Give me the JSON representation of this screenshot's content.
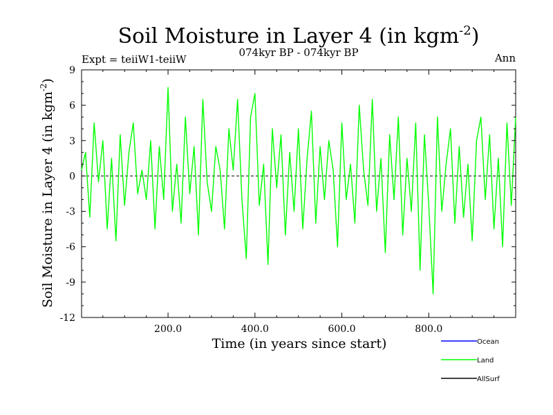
{
  "header": {
    "title": "Soil Moisture in Layer 4 (in kgm",
    "title_sup": "-2",
    "title_close": ")",
    "expt": "Expt = teiiW1-teiiW",
    "period": "074kyr BP - 074kyr BP",
    "season": "Ann"
  },
  "chart_data": {
    "type": "line",
    "title": "Soil Moisture in Layer 4 (in kgm-2)",
    "xlabel": "Time (in years since start)",
    "ylabel": "Soil Moisture in Layer 4 (in kgm-2)",
    "ylabel_main": "Soil Moisture in Layer 4 (in kgm",
    "ylabel_sup": "-2",
    "ylabel_close": ")",
    "xlim": [
      1,
      1000
    ],
    "ylim": [
      -12,
      9
    ],
    "xticks": [
      200,
      400,
      600,
      800
    ],
    "xtick_labels": [
      "200.0",
      "400.0",
      "600.0",
      "800.0"
    ],
    "yticks": [
      -12,
      -9,
      -6,
      -3,
      0,
      3,
      6,
      9
    ],
    "ytick_labels": [
      "-12",
      "-9",
      "-6",
      "-3",
      "0",
      "3",
      "6",
      "9"
    ],
    "zero_line": true,
    "grid": false,
    "legend_position": "bottom-right",
    "series": [
      {
        "name": "Ocean",
        "color": "#0000ff",
        "x": [],
        "y": []
      },
      {
        "name": "Land",
        "color": "#00ff00",
        "x": [
          1,
          10,
          20,
          30,
          40,
          50,
          60,
          70,
          80,
          90,
          100,
          110,
          120,
          130,
          140,
          150,
          160,
          170,
          180,
          190,
          200,
          210,
          220,
          230,
          240,
          250,
          260,
          270,
          280,
          290,
          300,
          310,
          320,
          330,
          340,
          350,
          360,
          370,
          380,
          390,
          400,
          410,
          420,
          430,
          440,
          450,
          460,
          470,
          480,
          490,
          500,
          510,
          520,
          530,
          540,
          550,
          560,
          570,
          580,
          590,
          600,
          610,
          620,
          630,
          640,
          650,
          660,
          670,
          680,
          690,
          700,
          710,
          720,
          730,
          740,
          750,
          760,
          770,
          780,
          790,
          800,
          810,
          820,
          830,
          840,
          850,
          860,
          870,
          880,
          890,
          900,
          910,
          920,
          930,
          940,
          950,
          960,
          970,
          980,
          990,
          1000
        ],
        "y": [
          0.5,
          2.0,
          -3.5,
          4.5,
          -0.5,
          3.0,
          -4.5,
          1.5,
          -5.5,
          3.5,
          -2.5,
          2.0,
          4.5,
          -1.5,
          0.5,
          -2.0,
          3.0,
          -4.5,
          2.5,
          -2.0,
          7.5,
          -3.0,
          1.0,
          -4.0,
          5.0,
          -1.5,
          2.5,
          -5.0,
          6.5,
          -0.5,
          -3.0,
          2.5,
          0.5,
          -4.5,
          4.0,
          0.5,
          6.5,
          -2.0,
          -7.0,
          5.0,
          7.0,
          -2.5,
          1.0,
          -7.5,
          4.0,
          -1.0,
          3.5,
          -5.0,
          2.0,
          -3.0,
          4.0,
          -4.5,
          1.5,
          5.5,
          -4.0,
          2.5,
          -2.0,
          3.0,
          0.5,
          -6.0,
          4.5,
          -2.0,
          1.0,
          -4.0,
          6.0,
          0.5,
          -2.5,
          6.5,
          -3.0,
          1.5,
          -6.5,
          3.5,
          -2.0,
          5.0,
          -5.0,
          1.5,
          -3.0,
          4.5,
          -8.0,
          3.5,
          -2.5,
          -10.0,
          5.0,
          -3.0,
          1.0,
          4.0,
          -4.0,
          2.5,
          -3.5,
          1.0,
          -5.5,
          3.0,
          5.0,
          -2.0,
          3.5,
          -4.5,
          1.5,
          -6.0,
          4.5,
          -2.5,
          5.0
        ]
      },
      {
        "name": "AllSurf",
        "color": "#000000",
        "x": [],
        "y": []
      }
    ]
  }
}
